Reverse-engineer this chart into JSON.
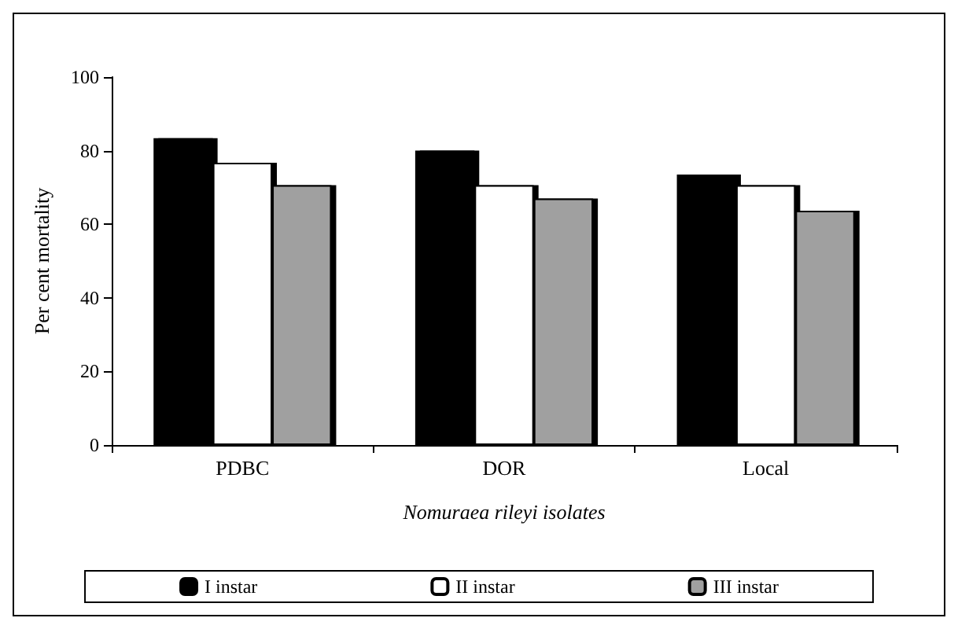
{
  "chart_data": {
    "type": "bar",
    "xlabel": "Nomuraea rileyi isolates",
    "ylabel": "Per cent mortality",
    "categories": [
      "PDBC",
      "DOR",
      "Local"
    ],
    "series": [
      {
        "name": "I instar",
        "color": "#000000",
        "values": [
          83.4,
          80,
          73.5
        ]
      },
      {
        "name": "II instar",
        "color": "#ffffff",
        "values": [
          76.7,
          70.6,
          70.6
        ]
      },
      {
        "name": "III instar",
        "color": "#a0a0a0",
        "values": [
          70.6,
          67,
          63.7
        ]
      }
    ],
    "ylim": [
      0,
      100
    ],
    "yticks": [
      0,
      20,
      40,
      60,
      80,
      100
    ],
    "grid": false,
    "legend": "bottom"
  }
}
